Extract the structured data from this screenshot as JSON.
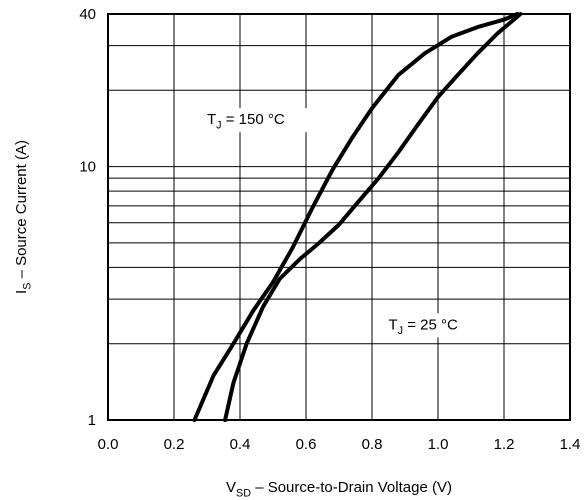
{
  "chart_data": {
    "type": "line",
    "xlabel": {
      "main": "V",
      "sub": "SD",
      "rest": " – Source-to-Drain Voltage (V)"
    },
    "ylabel": {
      "main": "I",
      "sub": "S",
      "rest": " – Source Current (A)"
    },
    "xlim": [
      0.0,
      1.4
    ],
    "ylim": [
      1,
      40
    ],
    "y_scale": "log",
    "grid": true,
    "x_ticks": [
      {
        "v": 0.0,
        "label": "0.0"
      },
      {
        "v": 0.2,
        "label": "0.2"
      },
      {
        "v": 0.4,
        "label": "0.4"
      },
      {
        "v": 0.6,
        "label": "0.6"
      },
      {
        "v": 0.8,
        "label": "0.8"
      },
      {
        "v": 1.0,
        "label": "1.0"
      },
      {
        "v": 1.2,
        "label": "1.2"
      },
      {
        "v": 1.4,
        "label": "1.4"
      }
    ],
    "y_ticks": [
      {
        "v": 1,
        "label": "1"
      },
      {
        "v": 10,
        "label": "10"
      },
      {
        "v": 40,
        "label": "40"
      }
    ],
    "series": [
      {
        "name": "T_J = 150 °C",
        "points": [
          [
            0.262,
            1.0
          ],
          [
            0.32,
            1.5
          ],
          [
            0.38,
            2.0
          ],
          [
            0.44,
            2.7
          ],
          [
            0.5,
            3.5
          ],
          [
            0.56,
            4.8
          ],
          [
            0.62,
            6.9
          ],
          [
            0.68,
            9.7
          ],
          [
            0.74,
            13.0
          ],
          [
            0.8,
            17.0
          ],
          [
            0.88,
            23.0
          ],
          [
            0.96,
            28.0
          ],
          [
            1.04,
            32.5
          ],
          [
            1.12,
            35.5
          ],
          [
            1.2,
            38.0
          ],
          [
            1.24,
            40.0
          ]
        ]
      },
      {
        "name": "T_J = 25 °C",
        "points": [
          [
            0.355,
            1.0
          ],
          [
            0.38,
            1.4
          ],
          [
            0.42,
            2.0
          ],
          [
            0.47,
            2.8
          ],
          [
            0.52,
            3.6
          ],
          [
            0.58,
            4.3
          ],
          [
            0.64,
            5.0
          ],
          [
            0.7,
            5.9
          ],
          [
            0.76,
            7.3
          ],
          [
            0.82,
            9.0
          ],
          [
            0.88,
            11.4
          ],
          [
            0.94,
            14.7
          ],
          [
            1.0,
            18.8
          ],
          [
            1.06,
            23.0
          ],
          [
            1.12,
            28.0
          ],
          [
            1.18,
            33.5
          ],
          [
            1.25,
            40.0
          ]
        ]
      }
    ],
    "annotations": [
      {
        "main": "T",
        "sub": "J",
        "rest": " = 150 °C",
        "x": 0.3,
        "y": 14.7
      },
      {
        "main": "T",
        "sub": "J",
        "rest": " = 25 °C",
        "x": 0.85,
        "y": 2.28
      }
    ]
  }
}
